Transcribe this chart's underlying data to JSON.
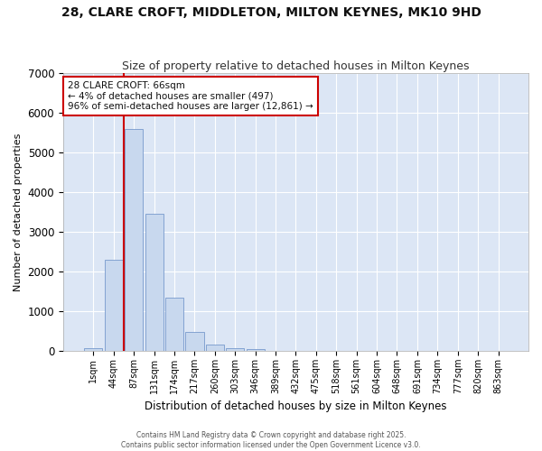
{
  "title1": "28, CLARE CROFT, MIDDLETON, MILTON KEYNES, MK10 9HD",
  "title2": "Size of property relative to detached houses in Milton Keynes",
  "xlabel": "Distribution of detached houses by size in Milton Keynes",
  "ylabel": "Number of detached properties",
  "bar_color": "#c8d8ee",
  "bar_edge_color": "#7799cc",
  "plot_bg_color": "#dce6f5",
  "fig_bg_color": "#ffffff",
  "grid_color": "#ffffff",
  "categories": [
    "1sqm",
    "44sqm",
    "87sqm",
    "131sqm",
    "174sqm",
    "217sqm",
    "260sqm",
    "303sqm",
    "346sqm",
    "389sqm",
    "432sqm",
    "475sqm",
    "518sqm",
    "561sqm",
    "604sqm",
    "648sqm",
    "691sqm",
    "734sqm",
    "777sqm",
    "820sqm",
    "863sqm"
  ],
  "bar_heights": [
    80,
    2300,
    5580,
    3450,
    1340,
    470,
    165,
    80,
    55,
    0,
    0,
    0,
    0,
    0,
    0,
    0,
    0,
    0,
    0,
    0,
    0
  ],
  "red_line_x": 1.52,
  "annotation_title": "28 CLARE CROFT: 66sqm",
  "annotation_line1": "← 4% of detached houses are smaller (497)",
  "annotation_line2": "96% of semi-detached houses are larger (12,861) →",
  "annotation_box_color": "#ffffff",
  "annotation_border_color": "#cc0000",
  "red_line_color": "#cc0000",
  "ylim": [
    0,
    7000
  ],
  "footer1": "Contains HM Land Registry data © Crown copyright and database right 2025.",
  "footer2": "Contains public sector information licensed under the Open Government Licence v3.0."
}
